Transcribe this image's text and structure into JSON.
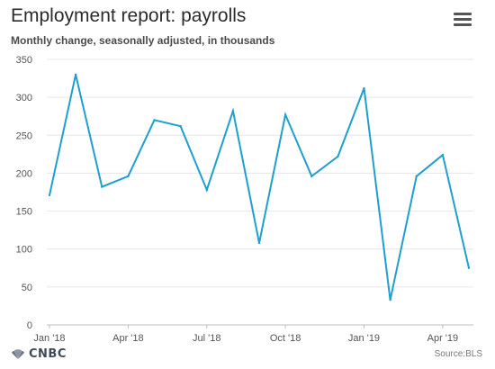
{
  "header": {
    "title": "Employment report: payrolls",
    "subtitle": "Monthly change, seasonally adjusted, in thousands"
  },
  "menu": {
    "icon": "hamburger-menu-icon"
  },
  "footer": {
    "logo_text": "CNBC",
    "logo_icon": "peacock-logo-icon",
    "source": "Source:BLS"
  },
  "colors": {
    "line": "#1f9fce",
    "grid": "#e6e6e6",
    "axis_text": "#555555"
  },
  "chart_data": {
    "type": "line",
    "x": [
      "Jan '18",
      "Feb '18",
      "Mar '18",
      "Apr '18",
      "May '18",
      "Jun '18",
      "Jul '18",
      "Aug '18",
      "Sep '18",
      "Oct '18",
      "Nov '18",
      "Dec '18",
      "Jan '19",
      "Feb '19",
      "Mar '19",
      "Apr '19",
      "May '19"
    ],
    "values": [
      171,
      330,
      182,
      196,
      270,
      262,
      178,
      282,
      108,
      277,
      196,
      222,
      312,
      33,
      196,
      224,
      75
    ],
    "x_tick_labels": [
      "Jan '18",
      "Apr '18",
      "Jul '18",
      "Oct '18",
      "Jan '19",
      "Apr '19"
    ],
    "x_tick_indices": [
      0,
      3,
      6,
      9,
      12,
      15
    ],
    "y_ticks": [
      0,
      50,
      100,
      150,
      200,
      250,
      300,
      350
    ],
    "ylim": [
      0,
      350
    ],
    "grid": true,
    "legend": "none"
  }
}
